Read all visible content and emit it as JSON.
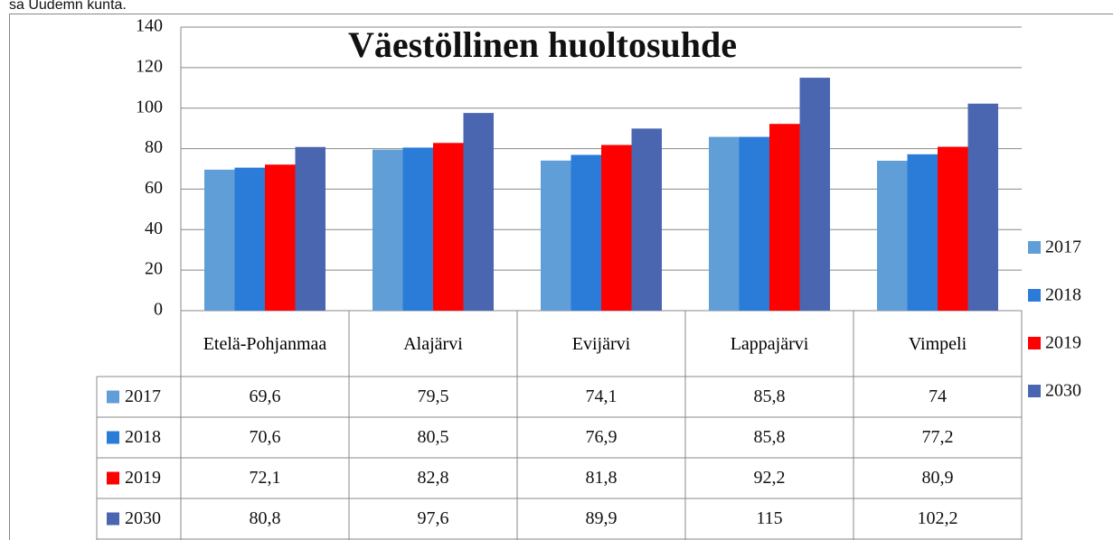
{
  "caption": "sa Uudemn kunta.",
  "chart_data": {
    "type": "bar",
    "title": "Väestöllinen huoltosuhde",
    "categories": [
      "Etelä-Pohjanmaa",
      "Alajärvi",
      "Evijärvi",
      "Lappajärvi",
      "Vimpeli"
    ],
    "series": [
      {
        "name": "2017",
        "color": "#5f9ed6",
        "values": [
          69.6,
          79.5,
          74.1,
          85.8,
          74
        ],
        "value_labels": [
          "69,6",
          "79,5",
          "74,1",
          "85,8",
          "74"
        ]
      },
      {
        "name": "2018",
        "color": "#2b7bd8",
        "values": [
          70.6,
          80.5,
          76.9,
          85.8,
          77.2
        ],
        "value_labels": [
          "70,6",
          "80,5",
          "76,9",
          "85,8",
          "77,2"
        ]
      },
      {
        "name": "2019",
        "color": "#ff0000",
        "values": [
          72.1,
          82.8,
          81.8,
          92.2,
          80.9
        ],
        "value_labels": [
          "72,1",
          "82,8",
          "81,8",
          "92,2",
          "80,9"
        ]
      },
      {
        "name": "2030",
        "color": "#4a66b0",
        "values": [
          80.8,
          97.6,
          89.9,
          115,
          102.2
        ],
        "value_labels": [
          "80,8",
          "97,6",
          "89,9",
          "115",
          "102,2"
        ]
      }
    ],
    "ylim": [
      0,
      140
    ],
    "yticks": [
      0,
      20,
      40,
      60,
      80,
      100,
      120,
      140
    ],
    "grid": true,
    "legend": "right"
  }
}
